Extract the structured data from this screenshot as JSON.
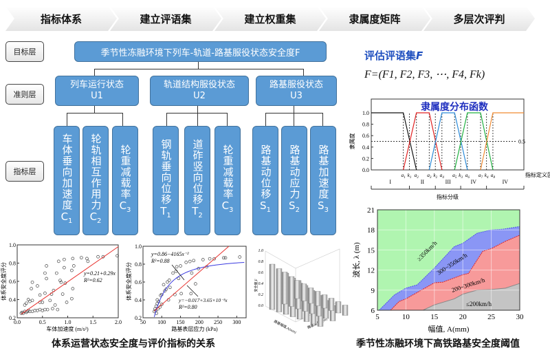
{
  "banner": {
    "steps": [
      "指标体系",
      "建立评语集",
      "建立权重集",
      "隶属度矩阵",
      "多层次评判"
    ]
  },
  "levels": {
    "goal": "目标层",
    "criteria": "准则层",
    "indicator": "指标层"
  },
  "goal": "季节性冻融环境下列车-轨道-路基服役状态安全度F",
  "criteria": [
    {
      "name": "列车运行状态",
      "code": "U1"
    },
    {
      "name": "轨道结构服役状态",
      "code": "U2"
    },
    {
      "name": "路基服役状态",
      "code": "U3"
    }
  ],
  "indicators": [
    {
      "text": "车体垂向加速度",
      "sym": "C",
      "sub": "1"
    },
    {
      "text": "轮轨相互作用力",
      "sym": "C",
      "sub": "2"
    },
    {
      "text": "轮重减载率",
      "sym": "C",
      "sub": "3"
    },
    {
      "text": "钢轨垂向位移",
      "sym": "T",
      "sub": "1"
    },
    {
      "text": "道砟竖向位移",
      "sym": "T",
      "sub": "2"
    },
    {
      "text": "轮重减载率",
      "sym": "C",
      "sub": "3"
    },
    {
      "text": "路基动位移",
      "sym": "S",
      "sub": "1"
    },
    {
      "text": "路基动应力",
      "sym": "S",
      "sub": "2"
    },
    {
      "text": "路基加速度",
      "sym": "S",
      "sub": "3"
    }
  ],
  "comment_set": {
    "title": "评估评语集",
    "title_sym": "F",
    "formula": "F=(F1, F2, F3, ⋯, F4, Fk)"
  },
  "colors": {
    "box": "#5b9bd5",
    "title_blue": "#1f4fbf",
    "fit_red": "#e8322e",
    "fit_blue": "#3a3ae0"
  },
  "chart_data": [
    {
      "type": "line",
      "title": "隶属度分布函数",
      "ylabel": "隶属度",
      "xlabel": "指标定义区间",
      "ylim": [
        0,
        1
      ],
      "yticks": [
        "0.0",
        "0.2",
        "0.4",
        "0.6",
        "0.8",
        "1.0"
      ],
      "threshold_label": "0.5",
      "breakpoint_labels": [
        "a1",
        "k1",
        "a2",
        "a3",
        "k2",
        "a4",
        "a5",
        "k3",
        "a6",
        "a7",
        "k4",
        "a8"
      ],
      "series_colors": [
        "#111111",
        "#e02020",
        "#2a8ad8",
        "#20b040",
        "#f08a30"
      ],
      "grades": [
        "I",
        "II",
        "III",
        "IV",
        "IV"
      ],
      "grade_title": "指标分级"
    },
    {
      "type": "scatter",
      "xlabel": "车体加速度 (m/s²)",
      "ylabel": "体系安全度评分",
      "xlim": [
        0,
        2.0
      ],
      "ylim": [
        0.2,
        1.0
      ],
      "xticks": [
        "0.0",
        "0.5",
        "1.0",
        "1.5",
        "2.0"
      ],
      "yticks": [
        "0.2",
        "0.4",
        "0.6",
        "0.8",
        "1.0"
      ],
      "equation": "y=0.21+0.29x",
      "r2": "R²=0.62",
      "fit_line": [
        [
          0.08,
          0.24
        ],
        [
          2.0,
          0.98
        ]
      ],
      "points": [
        [
          0.08,
          0.25
        ],
        [
          0.1,
          0.26
        ],
        [
          0.12,
          0.25
        ],
        [
          0.15,
          0.27
        ],
        [
          0.18,
          0.26
        ],
        [
          0.2,
          0.27
        ],
        [
          0.22,
          0.28
        ],
        [
          0.25,
          0.27
        ],
        [
          0.3,
          0.27
        ],
        [
          0.35,
          0.28
        ],
        [
          0.4,
          0.28
        ],
        [
          0.45,
          0.29
        ],
        [
          0.5,
          0.28
        ],
        [
          0.55,
          0.29
        ],
        [
          0.6,
          0.29
        ],
        [
          0.15,
          0.34
        ],
        [
          0.18,
          0.36
        ],
        [
          0.22,
          0.4
        ],
        [
          0.25,
          0.38
        ],
        [
          0.3,
          0.39
        ],
        [
          0.28,
          0.52
        ],
        [
          0.3,
          0.59
        ],
        [
          0.4,
          0.55
        ],
        [
          0.45,
          0.45
        ],
        [
          0.45,
          0.37
        ],
        [
          0.5,
          0.37
        ],
        [
          0.55,
          0.47
        ],
        [
          0.55,
          0.69
        ],
        [
          0.58,
          0.63
        ],
        [
          0.58,
          0.77
        ],
        [
          0.65,
          0.39
        ],
        [
          0.68,
          0.46
        ],
        [
          0.7,
          0.3
        ],
        [
          0.72,
          0.5
        ],
        [
          0.75,
          0.34
        ],
        [
          0.78,
          0.69
        ],
        [
          0.8,
          0.29
        ],
        [
          0.82,
          0.82
        ],
        [
          0.85,
          0.61
        ],
        [
          0.87,
          0.59
        ],
        [
          0.9,
          0.46
        ],
        [
          0.93,
          0.75
        ],
        [
          0.93,
          0.84
        ],
        [
          0.95,
          0.58
        ],
        [
          0.98,
          0.37
        ],
        [
          1.08,
          0.72
        ],
        [
          1.08,
          0.41
        ],
        [
          1.1,
          0.52
        ],
        [
          1.1,
          0.85
        ],
        [
          1.12,
          0.77
        ],
        [
          1.27,
          0.86
        ],
        [
          1.38,
          0.85
        ],
        [
          1.4,
          0.82
        ],
        [
          1.6,
          0.87
        ],
        [
          1.7,
          0.87
        ],
        [
          1.98,
          0.88
        ]
      ]
    },
    {
      "type": "scatter",
      "xlabel": "路基表层应力 (kPa)",
      "ylabel": "体系安全度评分",
      "xlim": [
        50,
        325
      ],
      "ylim": [
        0.2,
        1.0
      ],
      "xticks": [
        "50",
        "100",
        "150",
        "200",
        "250",
        "300"
      ],
      "yticks": [
        "0.2",
        "0.4",
        "0.6",
        "0.8",
        "1.0"
      ],
      "equation_nonlinear": "y=0.86−4165x⁻²",
      "r2_nonlinear": "R²=0.88",
      "equation_linear": "y=−0.017+3.65×10⁻³x",
      "r2_linear": "R²=0.80",
      "points": [
        [
          80,
          0.27
        ],
        [
          82,
          0.3
        ],
        [
          84,
          0.28
        ],
        [
          85,
          0.33
        ],
        [
          86,
          0.25
        ],
        [
          88,
          0.36
        ],
        [
          88,
          0.4
        ],
        [
          90,
          0.3
        ],
        [
          92,
          0.38
        ],
        [
          95,
          0.32
        ],
        [
          97,
          0.45
        ],
        [
          100,
          0.35
        ],
        [
          100,
          0.46
        ],
        [
          105,
          0.57
        ],
        [
          108,
          0.5
        ],
        [
          112,
          0.52
        ],
        [
          115,
          0.6
        ],
        [
          118,
          0.4
        ],
        [
          120,
          0.62
        ],
        [
          122,
          0.54
        ],
        [
          130,
          0.7
        ],
        [
          135,
          0.46
        ],
        [
          138,
          0.72
        ],
        [
          140,
          0.77
        ],
        [
          145,
          0.64
        ],
        [
          150,
          0.78
        ],
        [
          152,
          0.47
        ],
        [
          165,
          0.82
        ],
        [
          175,
          0.83
        ],
        [
          178,
          0.47
        ],
        [
          180,
          0.7
        ],
        [
          185,
          0.84
        ],
        [
          190,
          0.58
        ],
        [
          198,
          0.75
        ],
        [
          210,
          0.85
        ],
        [
          220,
          0.77
        ],
        [
          228,
          0.86
        ],
        [
          240,
          0.86
        ],
        [
          265,
          0.87
        ],
        [
          270,
          0.87
        ],
        [
          308,
          0.88
        ]
      ]
    },
    {
      "type": "bar3d",
      "zlabel": "安全度,F",
      "xlabel": "路基幅值,A(mm)",
      "ylabel": "路基波长,λ(m)",
      "zticks": [
        "0.0",
        "0.2",
        "0.4",
        "0.6",
        "0.8",
        "1.0"
      ],
      "rows": [
        [
          0.35,
          0.33,
          0.3,
          0.28,
          0.26,
          0.24,
          0.22,
          0.2
        ],
        [
          0.62,
          0.58,
          0.55,
          0.5,
          0.45,
          0.4,
          0.35,
          0.3
        ],
        [
          0.88,
          0.84,
          0.8,
          0.75,
          0.7,
          0.65,
          0.55,
          0.5
        ]
      ]
    },
    {
      "type": "area",
      "xlabel": "幅值, A(mm)",
      "ylabel": "波长, λ (m)",
      "xlim": [
        5,
        30
      ],
      "ylim": [
        6,
        21
      ],
      "xticks": [
        "5",
        "10",
        "15",
        "20",
        "25",
        "30"
      ],
      "yticks": [
        "6",
        "9",
        "12",
        "15",
        "18",
        "21"
      ],
      "regions": [
        {
          "name": "≥350km/h",
          "color": "#b0f5b0"
        },
        {
          "name": "300~350km/h",
          "color": "#8a96f5",
          "boundary": [
            [
              5.3,
              6
            ],
            [
              8,
              8.3
            ],
            [
              10,
              9.3
            ],
            [
              12,
              9.8
            ],
            [
              15,
              12.3
            ],
            [
              18.5,
              15.5
            ],
            [
              20,
              16
            ],
            [
              22.5,
              17.5
            ],
            [
              25,
              18
            ],
            [
              27,
              18.1
            ],
            [
              30,
              18.5
            ]
          ]
        },
        {
          "name": "200~300km/h",
          "color": "#f79a9a",
          "boundary": [
            [
              7.3,
              6
            ],
            [
              8.8,
              7.3
            ],
            [
              10,
              7.7
            ],
            [
              15,
              10.1
            ],
            [
              16.5,
              10.2
            ],
            [
              20,
              11.3
            ],
            [
              21,
              11.5
            ],
            [
              23.5,
              14.8
            ],
            [
              25,
              15.2
            ],
            [
              27.5,
              16.3
            ],
            [
              30,
              17.2
            ]
          ]
        },
        {
          "name": "≤200km/h",
          "color": "#c4c4c4",
          "boundary": [
            [
              13,
              6
            ],
            [
              15,
              6.8
            ],
            [
              18.5,
              7.7
            ],
            [
              20,
              8.4
            ],
            [
              22.5,
              9
            ],
            [
              25,
              9.1
            ],
            [
              27.5,
              9.3
            ],
            [
              30,
              10
            ]
          ]
        }
      ]
    }
  ],
  "captions": {
    "left": "体系运营状态安全度与评价指标的关系",
    "right": "季节性冻融环境下高铁路基安全度阈值"
  }
}
